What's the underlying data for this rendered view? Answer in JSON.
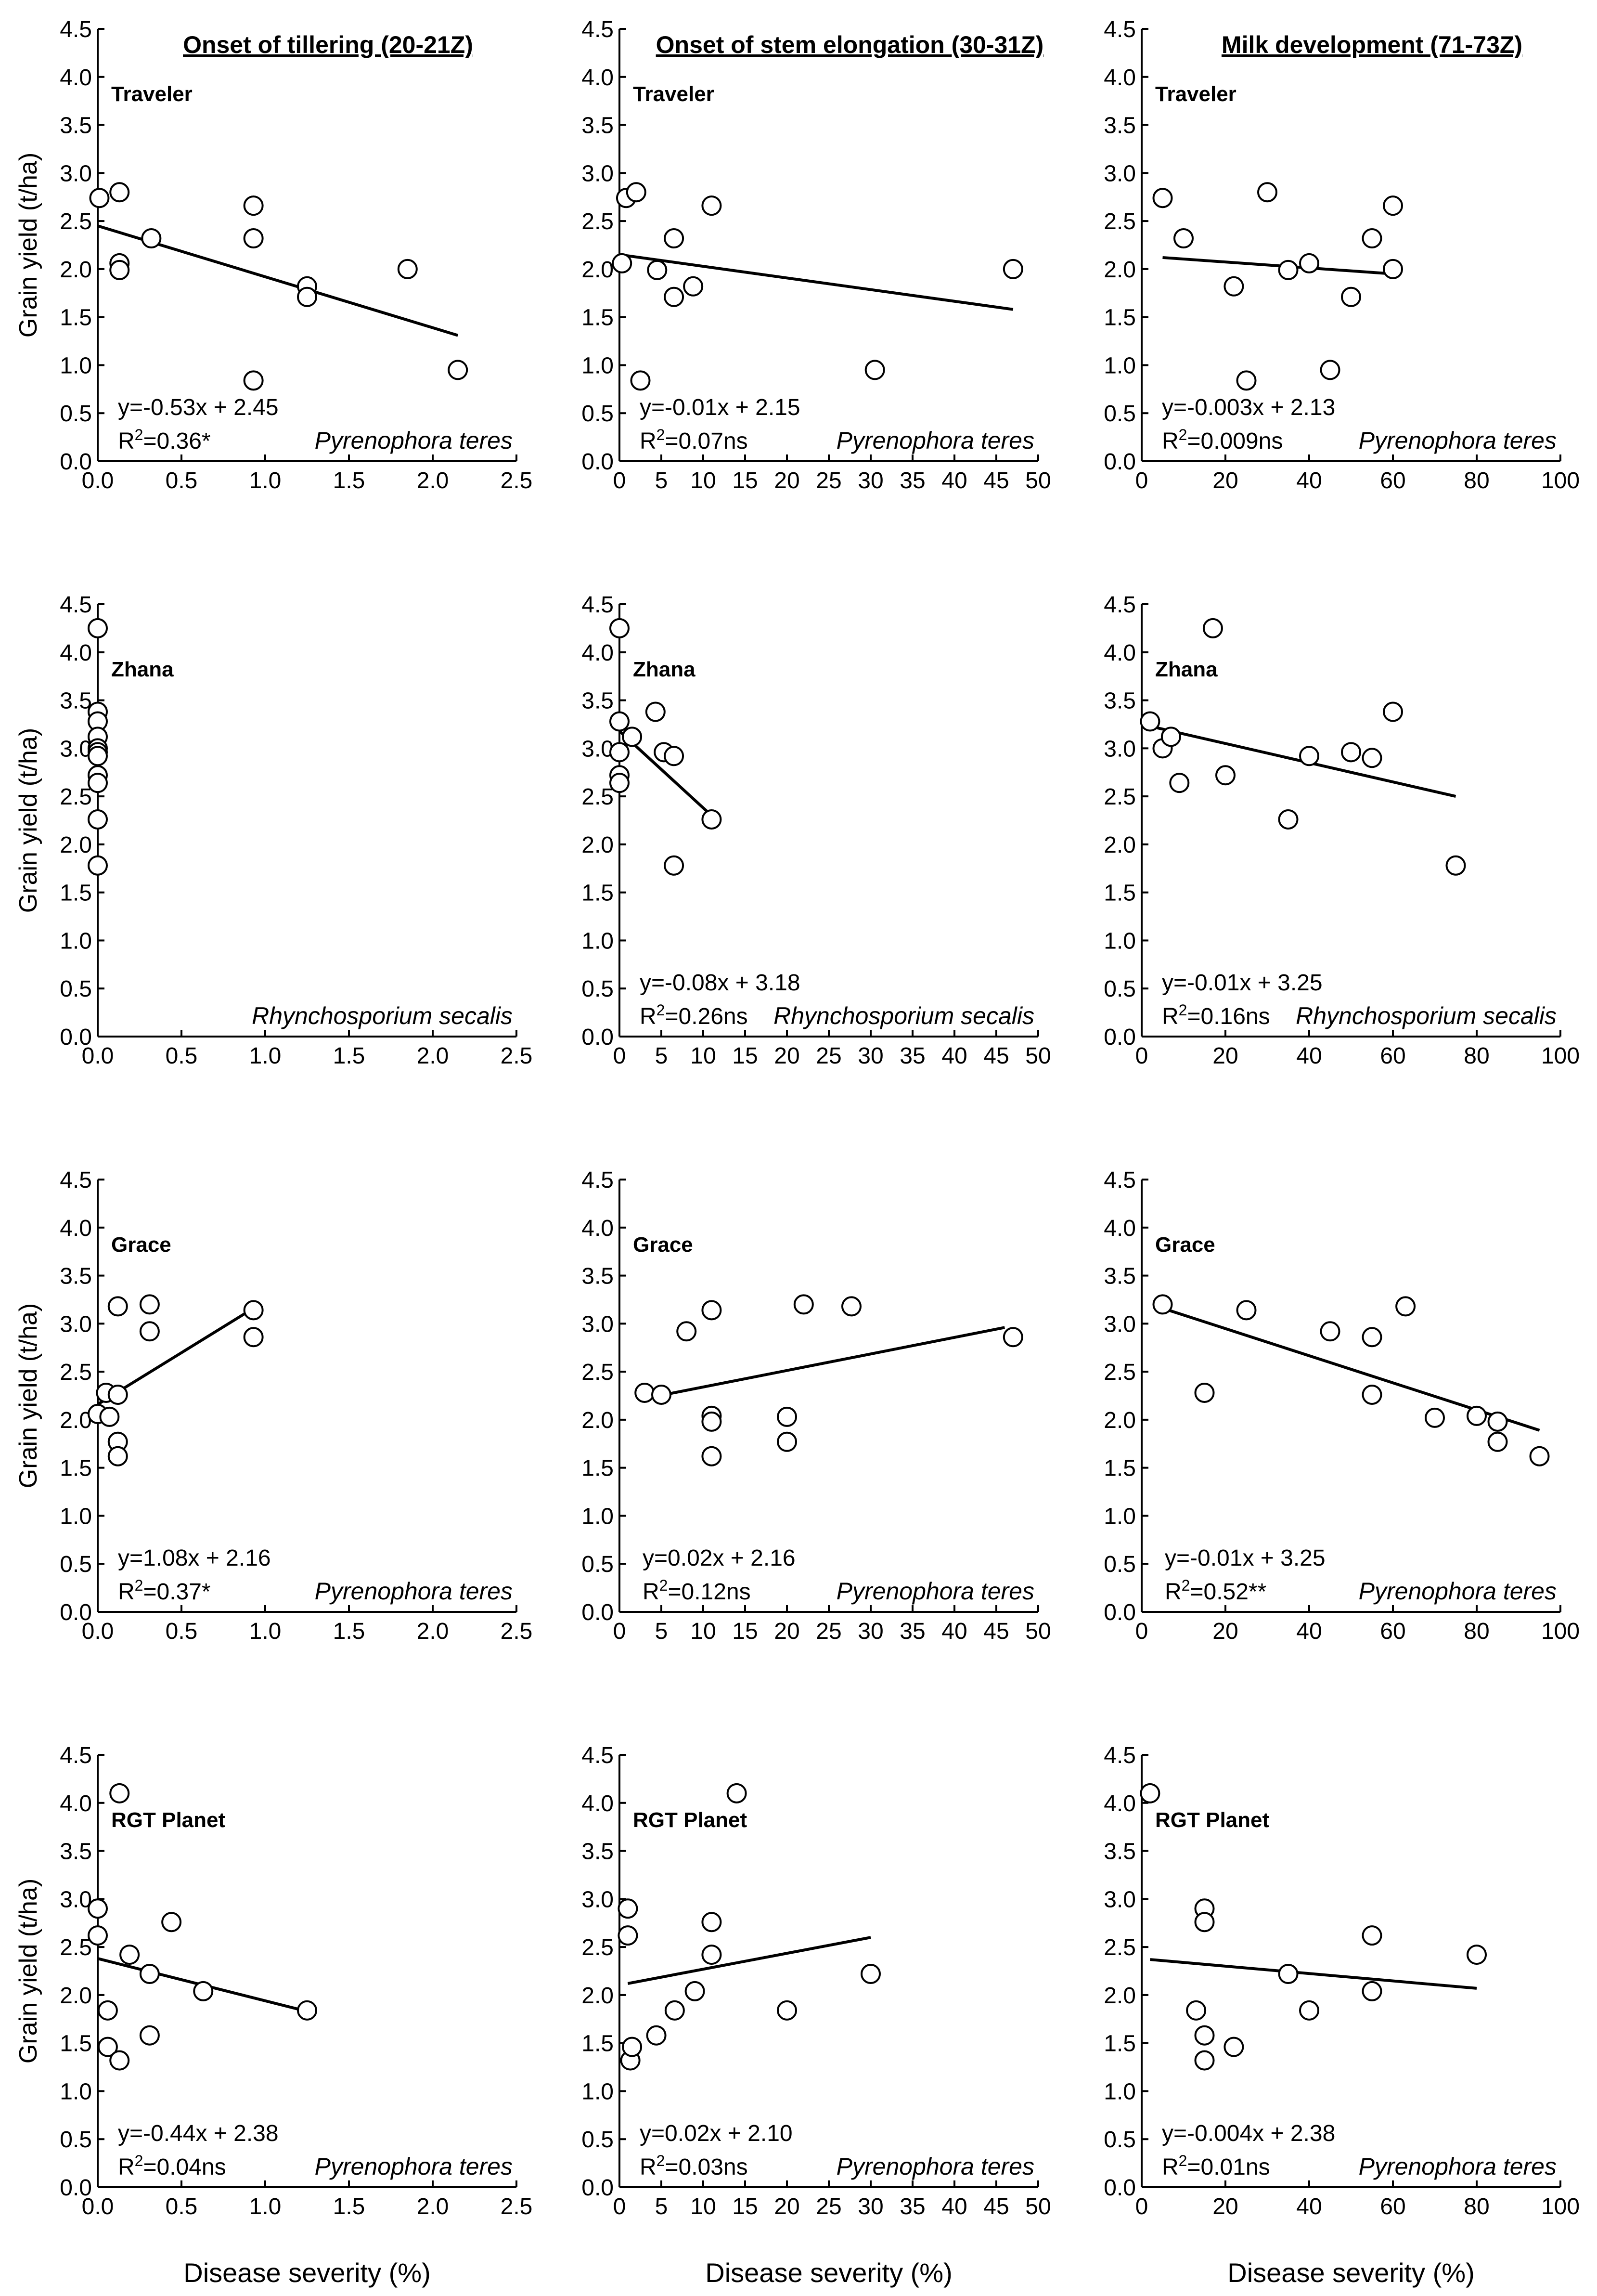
{
  "figure": {
    "column_headers": [
      "Onset of tillering (20-21Z)",
      "Onset of stem elongation (30-31Z)",
      "Milk development (71-73Z)"
    ],
    "row_cultivars": [
      "Traveler",
      "Zhana",
      "Grace",
      "RGT Planet"
    ],
    "xlabel": "Disease severity (%)",
    "ylabel": "Grain yield (t/ha)"
  },
  "chart_data": [
    {
      "type": "scatter",
      "row": 0,
      "col": 0,
      "cultivar": "Traveler",
      "pathogen": "Pyrenophora teres",
      "xlim": [
        0,
        2.5
      ],
      "xticks": [
        0,
        0.5,
        1.0,
        1.5,
        2.0,
        2.5
      ],
      "xtick_labels": [
        "0.0",
        "0.5",
        "1.0",
        "1.5",
        "2.0",
        "2.5"
      ],
      "ylim": [
        0,
        4.5
      ],
      "yticks": [
        0,
        0.5,
        1.0,
        1.5,
        2.0,
        2.5,
        3.0,
        3.5,
        4.0,
        4.5
      ],
      "ytick_labels": [
        "0.0",
        "0.5",
        "1.0",
        "1.5",
        "2.0",
        "2.5",
        "3.0",
        "3.5",
        "4.0",
        "4.5"
      ],
      "points": [
        [
          0.01,
          2.74
        ],
        [
          0.13,
          2.8
        ],
        [
          0.13,
          2.06
        ],
        [
          0.13,
          1.99
        ],
        [
          0.32,
          2.32
        ],
        [
          0.93,
          2.66
        ],
        [
          0.93,
          2.32
        ],
        [
          0.93,
          0.84
        ],
        [
          1.25,
          1.82
        ],
        [
          1.25,
          1.71
        ],
        [
          1.85,
          2.0
        ],
        [
          2.15,
          0.95
        ]
      ],
      "fit": {
        "x": [
          0,
          2.15
        ],
        "y": [
          2.45,
          1.31
        ]
      },
      "equation": "y=-0.53x + 2.45",
      "r2": "=0.36*"
    },
    {
      "type": "scatter",
      "row": 0,
      "col": 1,
      "cultivar": "Traveler",
      "pathogen": "Pyrenophora teres",
      "xlim": [
        0,
        50
      ],
      "xticks": [
        0,
        5,
        10,
        15,
        20,
        25,
        30,
        35,
        40,
        45,
        50
      ],
      "xtick_labels": [
        "0",
        "5",
        "10",
        "15",
        "20",
        "25",
        "30",
        "35",
        "40",
        "45",
        "50"
      ],
      "ylim": [
        0,
        4.5
      ],
      "yticks": [
        0,
        0.5,
        1.0,
        1.5,
        2.0,
        2.5,
        3.0,
        3.5,
        4.0,
        4.5
      ],
      "ytick_labels": [
        "0.0",
        "0.5",
        "1.0",
        "1.5",
        "2.0",
        "2.5",
        "3.0",
        "3.5",
        "4.0",
        "4.5"
      ],
      "points": [
        [
          0.3,
          2.06
        ],
        [
          0.8,
          2.74
        ],
        [
          2.0,
          2.8
        ],
        [
          2.5,
          0.84
        ],
        [
          4.5,
          1.99
        ],
        [
          6.5,
          2.32
        ],
        [
          6.5,
          1.71
        ],
        [
          8.8,
          1.82
        ],
        [
          11,
          2.66
        ],
        [
          30.5,
          0.95
        ],
        [
          47,
          2.0
        ]
      ],
      "fit": {
        "x": [
          0,
          47
        ],
        "y": [
          2.15,
          1.58
        ]
      },
      "equation": "y=-0.01x + 2.15",
      "r2": "=0.07ns"
    },
    {
      "type": "scatter",
      "row": 0,
      "col": 2,
      "cultivar": "Traveler",
      "pathogen": "Pyrenophora teres",
      "xlim": [
        0,
        100
      ],
      "xticks": [
        0,
        20,
        40,
        60,
        80,
        100
      ],
      "xtick_labels": [
        "0",
        "20",
        "40",
        "60",
        "80",
        "100"
      ],
      "ylim": [
        0,
        4.5
      ],
      "yticks": [
        0,
        0.5,
        1.0,
        1.5,
        2.0,
        2.5,
        3.0,
        3.5,
        4.0,
        4.5
      ],
      "ytick_labels": [
        "0.0",
        "0.5",
        "1.0",
        "1.5",
        "2.0",
        "2.5",
        "3.0",
        "3.5",
        "4.0",
        "4.5"
      ],
      "points": [
        [
          5,
          2.74
        ],
        [
          10,
          2.32
        ],
        [
          22,
          1.82
        ],
        [
          25,
          0.84
        ],
        [
          30,
          2.8
        ],
        [
          35,
          1.99
        ],
        [
          40,
          2.06
        ],
        [
          45,
          0.95
        ],
        [
          50,
          1.71
        ],
        [
          55,
          2.32
        ],
        [
          60,
          2.66
        ],
        [
          60,
          2.0
        ]
      ],
      "fit": {
        "x": [
          5,
          60
        ],
        "y": [
          2.12,
          1.95
        ]
      },
      "equation": "y=-0.003x + 2.13",
      "r2": "=0.009ns"
    },
    {
      "type": "scatter",
      "row": 1,
      "col": 0,
      "cultivar": "Zhana",
      "pathogen": "Rhynchosporium secalis",
      "xlim": [
        0,
        2.5
      ],
      "xticks": [
        0,
        0.5,
        1.0,
        1.5,
        2.0,
        2.5
      ],
      "xtick_labels": [
        "0.0",
        "0.5",
        "1.0",
        "1.5",
        "2.0",
        "2.5"
      ],
      "ylim": [
        0,
        4.5
      ],
      "yticks": [
        0,
        0.5,
        1.0,
        1.5,
        2.0,
        2.5,
        3.0,
        3.5,
        4.0,
        4.5
      ],
      "ytick_labels": [
        "0.0",
        "0.5",
        "1.0",
        "1.5",
        "2.0",
        "2.5",
        "3.0",
        "3.5",
        "4.0",
        "4.5"
      ],
      "points": [
        [
          0,
          4.25
        ],
        [
          0,
          3.38
        ],
        [
          0,
          3.28
        ],
        [
          0,
          3.12
        ],
        [
          0,
          3.0
        ],
        [
          0,
          2.96
        ],
        [
          0,
          2.92
        ],
        [
          0,
          2.72
        ],
        [
          0,
          2.64
        ],
        [
          0,
          2.26
        ],
        [
          0,
          1.78
        ]
      ],
      "fit": null,
      "equation": "",
      "r2": ""
    },
    {
      "type": "scatter",
      "row": 1,
      "col": 1,
      "cultivar": "Zhana",
      "pathogen": "Rhynchosporium secalis",
      "xlim": [
        0,
        50
      ],
      "xticks": [
        0,
        5,
        10,
        15,
        20,
        25,
        30,
        35,
        40,
        45,
        50
      ],
      "xtick_labels": [
        "0",
        "5",
        "10",
        "15",
        "20",
        "25",
        "30",
        "35",
        "40",
        "45",
        "50"
      ],
      "ylim": [
        0,
        4.5
      ],
      "yticks": [
        0,
        0.5,
        1.0,
        1.5,
        2.0,
        2.5,
        3.0,
        3.5,
        4.0,
        4.5
      ],
      "ytick_labels": [
        "0.0",
        "0.5",
        "1.0",
        "1.5",
        "2.0",
        "2.5",
        "3.0",
        "3.5",
        "4.0",
        "4.5"
      ],
      "points": [
        [
          0,
          4.25
        ],
        [
          0,
          3.28
        ],
        [
          0,
          2.96
        ],
        [
          0,
          2.72
        ],
        [
          0,
          2.64
        ],
        [
          1.5,
          3.12
        ],
        [
          4.3,
          3.38
        ],
        [
          5.3,
          2.96
        ],
        [
          6.5,
          2.92
        ],
        [
          6.5,
          1.78
        ],
        [
          11,
          2.26
        ]
      ],
      "fit": {
        "x": [
          0,
          11
        ],
        "y": [
          3.18,
          2.3
        ]
      },
      "equation": "y=-0.08x + 3.18",
      "r2": "=0.26ns"
    },
    {
      "type": "scatter",
      "row": 1,
      "col": 2,
      "cultivar": "Zhana",
      "pathogen": "Rhynchosporium secalis",
      "xlim": [
        0,
        100
      ],
      "xticks": [
        0,
        20,
        40,
        60,
        80,
        100
      ],
      "xtick_labels": [
        "0",
        "20",
        "40",
        "60",
        "80",
        "100"
      ],
      "ylim": [
        0,
        4.5
      ],
      "yticks": [
        0,
        0.5,
        1.0,
        1.5,
        2.0,
        2.5,
        3.0,
        3.5,
        4.0,
        4.5
      ],
      "ytick_labels": [
        "0.0",
        "0.5",
        "1.0",
        "1.5",
        "2.0",
        "2.5",
        "3.0",
        "3.5",
        "4.0",
        "4.5"
      ],
      "points": [
        [
          2,
          3.28
        ],
        [
          5,
          3.0
        ],
        [
          7,
          3.12
        ],
        [
          9,
          2.64
        ],
        [
          17,
          4.25
        ],
        [
          20,
          2.72
        ],
        [
          35,
          2.26
        ],
        [
          40,
          2.92
        ],
        [
          50,
          2.96
        ],
        [
          55,
          2.9
        ],
        [
          60,
          3.38
        ],
        [
          75,
          1.78
        ]
      ],
      "fit": {
        "x": [
          2,
          75
        ],
        "y": [
          3.23,
          2.5
        ]
      },
      "equation": "y=-0.01x + 3.25",
      "r2": "=0.16ns"
    },
    {
      "type": "scatter",
      "row": 2,
      "col": 0,
      "cultivar": "Grace",
      "pathogen": "Pyrenophora teres",
      "xlim": [
        0,
        2.5
      ],
      "xticks": [
        0,
        0.5,
        1.0,
        1.5,
        2.0,
        2.5
      ],
      "xtick_labels": [
        "0.0",
        "0.5",
        "1.0",
        "1.5",
        "2.0",
        "2.5"
      ],
      "ylim": [
        0,
        4.5
      ],
      "yticks": [
        0,
        0.5,
        1.0,
        1.5,
        2.0,
        2.5,
        3.0,
        3.5,
        4.0,
        4.5
      ],
      "ytick_labels": [
        "0.0",
        "0.5",
        "1.0",
        "1.5",
        "2.0",
        "2.5",
        "3.0",
        "3.5",
        "4.0",
        "4.5"
      ],
      "points": [
        [
          0,
          2.06
        ],
        [
          0.05,
          2.28
        ],
        [
          0.07,
          2.03
        ],
        [
          0.12,
          3.18
        ],
        [
          0.12,
          2.26
        ],
        [
          0.12,
          1.77
        ],
        [
          0.12,
          1.62
        ],
        [
          0.31,
          3.2
        ],
        [
          0.31,
          2.92
        ],
        [
          0.93,
          3.14
        ],
        [
          0.93,
          2.86
        ]
      ],
      "fit": {
        "x": [
          0,
          0.93
        ],
        "y": [
          2.16,
          3.16
        ]
      },
      "equation": "y=1.08x + 2.16",
      "r2": "=0.37*"
    },
    {
      "type": "scatter",
      "row": 2,
      "col": 1,
      "cultivar": "Grace",
      "pathogen": "Pyrenophora teres",
      "xlim": [
        0,
        50
      ],
      "xticks": [
        0,
        5,
        10,
        15,
        20,
        25,
        30,
        35,
        40,
        45,
        50
      ],
      "xtick_labels": [
        "0",
        "5",
        "10",
        "15",
        "20",
        "25",
        "30",
        "35",
        "40",
        "45",
        "50"
      ],
      "ylim": [
        0,
        4.5
      ],
      "yticks": [
        0,
        0.5,
        1.0,
        1.5,
        2.0,
        2.5,
        3.0,
        3.5,
        4.0,
        4.5
      ],
      "ytick_labels": [
        "0.0",
        "0.5",
        "1.0",
        "1.5",
        "2.0",
        "2.5",
        "3.0",
        "3.5",
        "4.0",
        "4.5"
      ],
      "points": [
        [
          3,
          2.28
        ],
        [
          5,
          2.26
        ],
        [
          8,
          2.92
        ],
        [
          11,
          3.14
        ],
        [
          11,
          2.04
        ],
        [
          11,
          1.98
        ],
        [
          11,
          1.62
        ],
        [
          20,
          2.03
        ],
        [
          20,
          1.77
        ],
        [
          22,
          3.2
        ],
        [
          27.7,
          3.18
        ],
        [
          47,
          2.86
        ]
      ],
      "fit": {
        "x": [
          3,
          46
        ],
        "y": [
          2.22,
          2.96
        ]
      },
      "equation": "y=0.02x + 2.16",
      "r2": "=0.12ns"
    },
    {
      "type": "scatter",
      "row": 2,
      "col": 2,
      "cultivar": "Grace",
      "pathogen": "Pyrenophora teres",
      "xlim": [
        0,
        100
      ],
      "xticks": [
        0,
        20,
        40,
        60,
        80,
        100
      ],
      "xtick_labels": [
        "0",
        "20",
        "40",
        "60",
        "80",
        "100"
      ],
      "ylim": [
        0,
        4.5
      ],
      "yticks": [
        0,
        0.5,
        1.0,
        1.5,
        2.0,
        2.5,
        3.0,
        3.5,
        4.0,
        4.5
      ],
      "ytick_labels": [
        "0.0",
        "0.5",
        "1.0",
        "1.5",
        "2.0",
        "2.5",
        "3.0",
        "3.5",
        "4.0",
        "4.5"
      ],
      "points": [
        [
          5,
          3.2
        ],
        [
          15,
          2.28
        ],
        [
          25,
          3.14
        ],
        [
          45,
          2.92
        ],
        [
          55,
          2.86
        ],
        [
          55,
          2.26
        ],
        [
          63,
          3.18
        ],
        [
          70,
          2.02
        ],
        [
          80,
          2.04
        ],
        [
          85,
          1.98
        ],
        [
          85,
          1.77
        ],
        [
          95,
          1.62
        ]
      ],
      "fit": {
        "x": [
          5,
          95
        ],
        "y": [
          3.16,
          1.89
        ]
      },
      "equation": "y=-0.01x + 3.25",
      "r2": "=0.52**"
    },
    {
      "type": "scatter",
      "row": 3,
      "col": 0,
      "cultivar": "RGT Planet",
      "pathogen": "Pyrenophora teres",
      "xlim": [
        0,
        2.5
      ],
      "xticks": [
        0,
        0.5,
        1.0,
        1.5,
        2.0,
        2.5
      ],
      "xtick_labels": [
        "0.0",
        "0.5",
        "1.0",
        "1.5",
        "2.0",
        "2.5"
      ],
      "ylim": [
        0,
        4.5
      ],
      "yticks": [
        0,
        0.5,
        1.0,
        1.5,
        2.0,
        2.5,
        3.0,
        3.5,
        4.0,
        4.5
      ],
      "ytick_labels": [
        "0.0",
        "0.5",
        "1.0",
        "1.5",
        "2.0",
        "2.5",
        "3.0",
        "3.5",
        "4.0",
        "4.5"
      ],
      "points": [
        [
          0,
          2.9
        ],
        [
          0,
          2.62
        ],
        [
          0.06,
          1.84
        ],
        [
          0.06,
          1.46
        ],
        [
          0.13,
          4.1
        ],
        [
          0.13,
          1.32
        ],
        [
          0.19,
          2.42
        ],
        [
          0.31,
          2.22
        ],
        [
          0.31,
          1.58
        ],
        [
          0.44,
          2.76
        ],
        [
          0.63,
          2.04
        ],
        [
          1.25,
          1.84
        ]
      ],
      "fit": {
        "x": [
          0,
          1.25
        ],
        "y": [
          2.38,
          1.83
        ]
      },
      "equation": "y=-0.44x + 2.38",
      "r2": "=0.04ns"
    },
    {
      "type": "scatter",
      "row": 3,
      "col": 1,
      "cultivar": "RGT Planet",
      "pathogen": "Pyrenophora teres",
      "xlim": [
        0,
        50
      ],
      "xticks": [
        0,
        5,
        10,
        15,
        20,
        25,
        30,
        35,
        40,
        45,
        50
      ],
      "xtick_labels": [
        "0",
        "5",
        "10",
        "15",
        "20",
        "25",
        "30",
        "35",
        "40",
        "45",
        "50"
      ],
      "ylim": [
        0,
        4.5
      ],
      "yticks": [
        0,
        0.5,
        1.0,
        1.5,
        2.0,
        2.5,
        3.0,
        3.5,
        4.0,
        4.5
      ],
      "ytick_labels": [
        "0.0",
        "0.5",
        "1.0",
        "1.5",
        "2.0",
        "2.5",
        "3.0",
        "3.5",
        "4.0",
        "4.5"
      ],
      "points": [
        [
          1,
          2.9
        ],
        [
          1,
          2.62
        ],
        [
          1.3,
          1.32
        ],
        [
          1.5,
          1.46
        ],
        [
          4.4,
          1.58
        ],
        [
          6.6,
          1.84
        ],
        [
          9,
          2.04
        ],
        [
          11,
          2.76
        ],
        [
          11,
          2.42
        ],
        [
          14,
          4.1
        ],
        [
          20,
          1.84
        ],
        [
          30,
          2.22
        ]
      ],
      "fit": {
        "x": [
          1,
          30
        ],
        "y": [
          2.12,
          2.6
        ]
      },
      "equation": "y=0.02x + 2.10",
      "r2": "=0.03ns"
    },
    {
      "type": "scatter",
      "row": 3,
      "col": 2,
      "cultivar": "RGT Planet",
      "pathogen": "Pyrenophora teres",
      "xlim": [
        0,
        100
      ],
      "xticks": [
        0,
        20,
        40,
        60,
        80,
        100
      ],
      "xtick_labels": [
        "0",
        "20",
        "40",
        "60",
        "80",
        "100"
      ],
      "ylim": [
        0,
        4.5
      ],
      "yticks": [
        0,
        0.5,
        1.0,
        1.5,
        2.0,
        2.5,
        3.0,
        3.5,
        4.0,
        4.5
      ],
      "ytick_labels": [
        "0.0",
        "0.5",
        "1.0",
        "1.5",
        "2.0",
        "2.5",
        "3.0",
        "3.5",
        "4.0",
        "4.5"
      ],
      "points": [
        [
          2,
          4.1
        ],
        [
          13,
          1.84
        ],
        [
          15,
          2.9
        ],
        [
          15,
          2.76
        ],
        [
          15,
          1.58
        ],
        [
          15,
          1.32
        ],
        [
          22,
          1.46
        ],
        [
          35,
          2.22
        ],
        [
          40,
          1.84
        ],
        [
          55,
          2.62
        ],
        [
          55,
          2.04
        ],
        [
          80,
          2.42
        ]
      ],
      "fit": {
        "x": [
          2,
          80
        ],
        "y": [
          2.37,
          2.07
        ]
      },
      "equation": "y=-0.004x + 2.38",
      "r2": "=0.01ns"
    }
  ]
}
